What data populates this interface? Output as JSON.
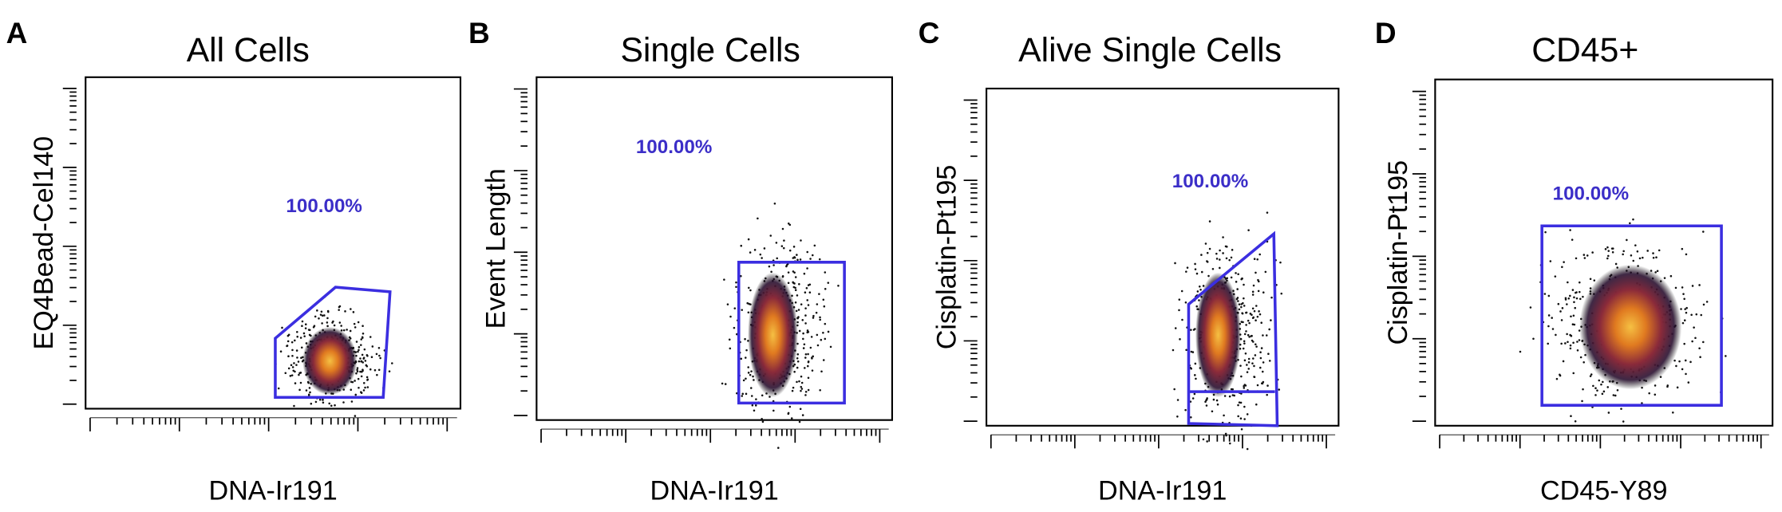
{
  "panels": [
    {
      "label": "A",
      "title": "All Cells",
      "y_axis_label": "EQ4Bead-Cel140",
      "x_axis_label": "DNA-Ir191",
      "gate_percent": "100.00%"
    },
    {
      "label": "B",
      "title": "Single Cells",
      "y_axis_label": "Event Length",
      "x_axis_label": "DNA-Ir191",
      "gate_percent": "100.00%"
    },
    {
      "label": "C",
      "title": "Alive Single Cells",
      "y_axis_label": "Cisplatin-Pt195",
      "x_axis_label": "DNA-Ir191",
      "gate_percent": "100.00%"
    },
    {
      "label": "D",
      "title": "CD45+",
      "y_axis_label": "Cisplatin-Pt195",
      "x_axis_label": "CD45-Y89",
      "gate_percent": "100.00%"
    }
  ]
}
